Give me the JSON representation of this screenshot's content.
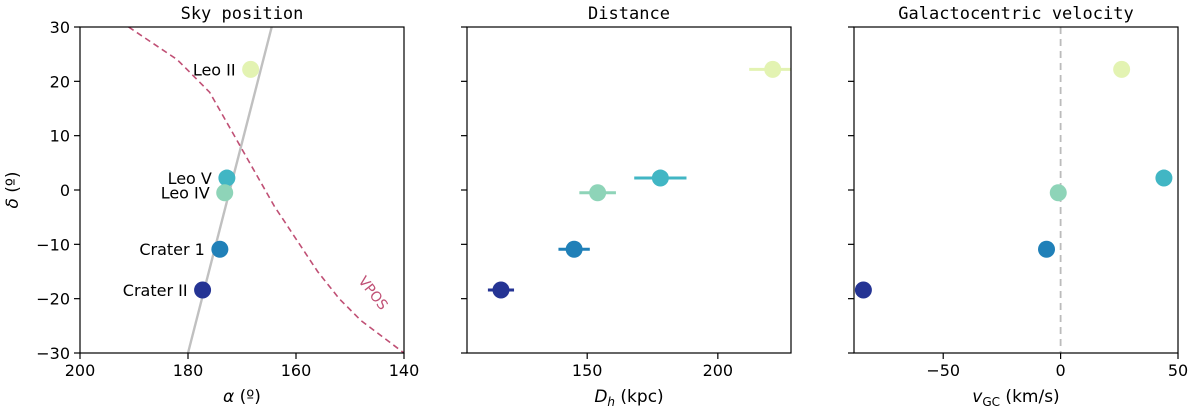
{
  "chart_data": [
    {
      "type": "scatter",
      "title": "Sky position",
      "xlabel": "α (º)",
      "ylabel": "δ (º)",
      "xlim": [
        200,
        140
      ],
      "ylim": [
        -30,
        30
      ],
      "xticks": [
        200,
        180,
        160,
        140
      ],
      "yticks": [
        -30,
        -20,
        -10,
        0,
        10,
        20,
        30
      ],
      "series": [
        {
          "name": "Leo II",
          "x": 168.4,
          "y": 22.2,
          "color": "#e3f3b2"
        },
        {
          "name": "Leo V",
          "x": 172.8,
          "y": 2.2,
          "color": "#41b6c4"
        },
        {
          "name": "Leo IV",
          "x": 173.2,
          "y": -0.5,
          "color": "#8ed4b8"
        },
        {
          "name": "Crater 1",
          "x": 174.1,
          "y": -10.9,
          "color": "#2080b8"
        },
        {
          "name": "Crater II",
          "x": 177.3,
          "y": -18.4,
          "color": "#253494"
        }
      ],
      "lines": [
        {
          "kind": "orbit",
          "color": "#c0c0c0",
          "style": "solid",
          "x": [
            180,
            164.5
          ],
          "y": [
            -30,
            30
          ]
        },
        {
          "name": "VPOS",
          "color": "#c05075",
          "style": "dashed",
          "x": [
            191,
            182,
            176,
            172,
            168,
            164,
            160,
            156,
            152,
            148,
            144,
            140
          ],
          "y": [
            30,
            24,
            18,
            11,
            4,
            -3,
            -9,
            -15,
            -20,
            -24,
            -27,
            -30
          ]
        }
      ]
    },
    {
      "type": "scatter",
      "title": "Distance",
      "xlabel": "D_h (kpc)",
      "xlim": [
        104,
        228
      ],
      "ylim": [
        -30,
        30
      ],
      "xticks": [
        150,
        200
      ],
      "series": [
        {
          "name": "Leo II",
          "x": 221,
          "y": 22.2,
          "xerr": 9,
          "color": "#e3f3b2"
        },
        {
          "name": "Leo V",
          "x": 178,
          "y": 2.2,
          "xerr": 10,
          "color": "#41b6c4"
        },
        {
          "name": "Leo IV",
          "x": 154,
          "y": -0.5,
          "xerr": 7,
          "color": "#8ed4b8"
        },
        {
          "name": "Crater 1",
          "x": 145,
          "y": -10.9,
          "xerr": 6,
          "color": "#2080b8"
        },
        {
          "name": "Crater II",
          "x": 117,
          "y": -18.4,
          "xerr": 5,
          "color": "#253494"
        }
      ]
    },
    {
      "type": "scatter",
      "title": "Galactocentric velocity",
      "xlabel": "v_GC (km/s)",
      "xlim": [
        -88,
        50
      ],
      "ylim": [
        -30,
        30
      ],
      "xticks": [
        -50,
        0,
        50
      ],
      "vline": {
        "x": 0,
        "color": "#bbbbbb",
        "style": "dashed"
      },
      "series": [
        {
          "name": "Leo II",
          "x": 26,
          "y": 22.2,
          "color": "#e3f3b2"
        },
        {
          "name": "Leo V",
          "x": 44,
          "y": 2.2,
          "color": "#41b6c4"
        },
        {
          "name": "Leo IV",
          "x": -1,
          "y": -0.5,
          "color": "#8ed4b8"
        },
        {
          "name": "Crater 1",
          "x": -6,
          "y": -10.9,
          "color": "#2080b8"
        },
        {
          "name": "Crater II",
          "x": -84,
          "y": -18.4,
          "color": "#253494"
        }
      ]
    }
  ],
  "labels": {
    "vpos": "VPOS",
    "xlabel0_sym": "α",
    "xlabel0_unit": " (º)",
    "ylabel_sym": "δ",
    "ylabel_unit": " (º)",
    "xlabel1_sym": "D",
    "xlabel1_sub": "h",
    "xlabel1_unit": " (kpc)",
    "xlabel2_sym": "v",
    "xlabel2_sub": "GC",
    "xlabel2_unit": " (km/s)"
  }
}
